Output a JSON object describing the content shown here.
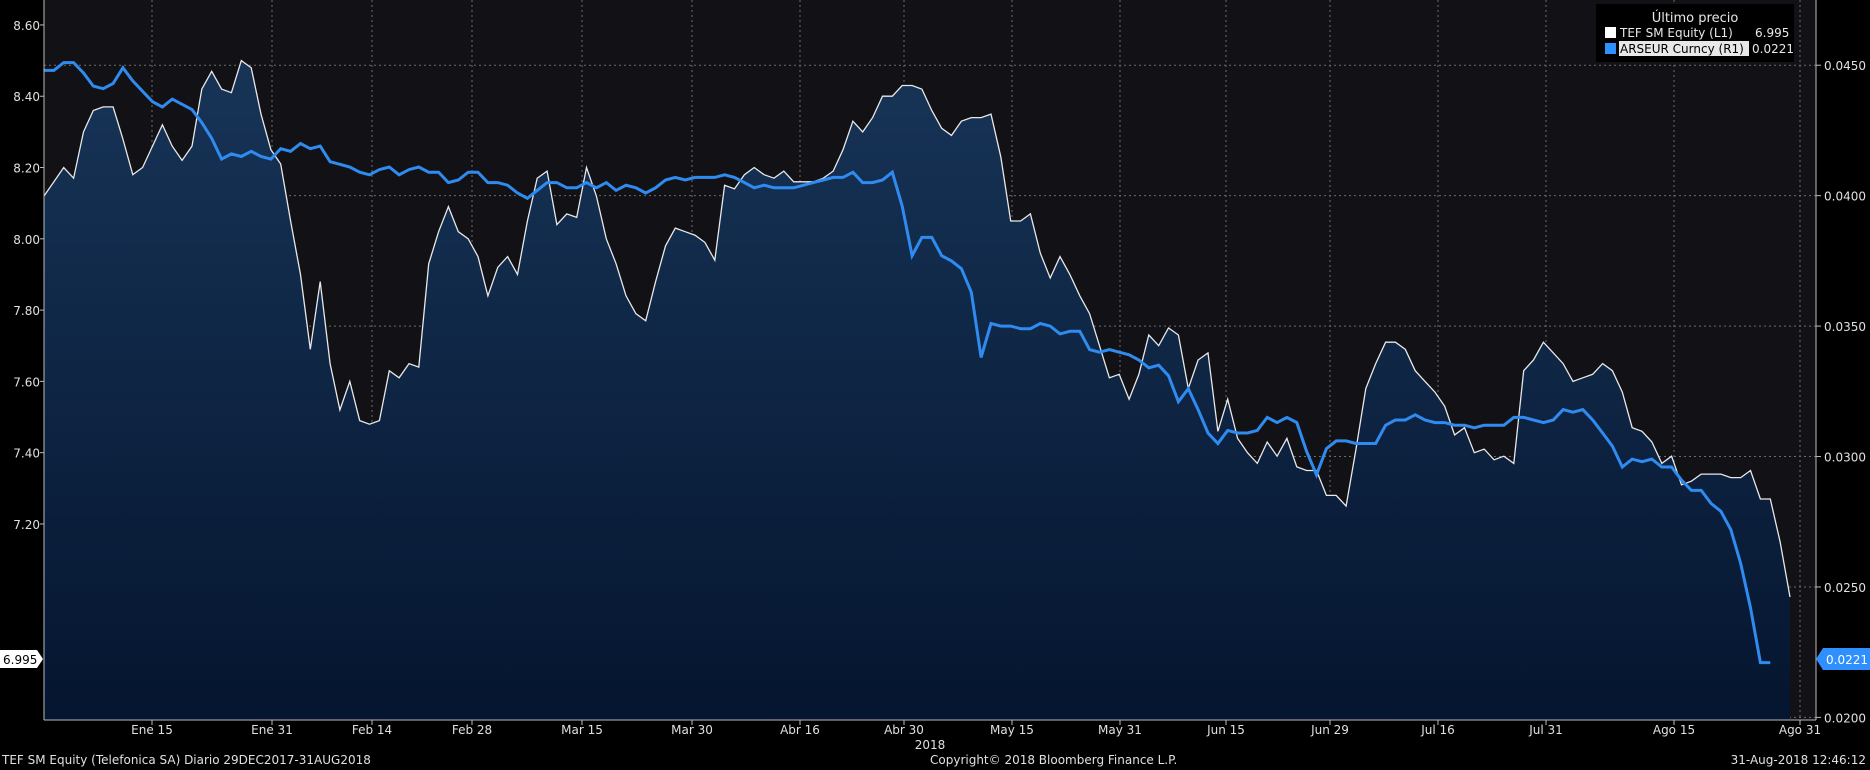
{
  "footer": {
    "left": "TEF SM Equity (Telefonica SA)  Diario 29DEC2017-31AUG2018",
    "center": "Copyright© 2018 Bloomberg Finance L.P.",
    "right": "31-Aug-2018 12:46:12"
  },
  "chart_data": {
    "type": "line",
    "year_label": "2018",
    "x_ticks": [
      "Ene 15",
      "Ene 31",
      "Feb 14",
      "Feb 28",
      "Mar 15",
      "Mar 30",
      "Abr 16",
      "Abr 30",
      "May 15",
      "May 31",
      "Jun 15",
      "Jun 29",
      "Jul 16",
      "Jul 31",
      "Ago 15",
      "Ago 31"
    ],
    "left_axis": {
      "ticks": [
        "7.20",
        "7.40",
        "7.60",
        "7.80",
        "8.00",
        "8.20",
        "8.40",
        "8.60"
      ],
      "range": [
        6.65,
        8.67
      ]
    },
    "right_axis": {
      "ticks": [
        "0.0200",
        "0.0250",
        "0.0300",
        "0.0350",
        "0.0400",
        "0.0450"
      ],
      "range": [
        0.0199,
        0.0475
      ]
    },
    "legend": {
      "title": "Último precio",
      "position": "top-right",
      "entries": [
        {
          "name": "TEF SM Equity  (L1)",
          "value": "6.995",
          "color": "#ffffff"
        },
        {
          "name": "ARSEUR Curncy  (R1)",
          "value": "0.0221",
          "color": "#2e8fff"
        }
      ]
    },
    "last_value_tags": {
      "left": "6.995",
      "right": "0.0221"
    },
    "colors": {
      "background": "#121216",
      "area_top": "#173457",
      "area_bottom": "#05152f",
      "tef_line": "#e8e8e8",
      "ars_line": "#2f8bf0",
      "grid": "#6c6c6c"
    },
    "series": [
      {
        "name": "TEF SM Equity (L1)",
        "axis": "left",
        "values": [
          8.12,
          8.16,
          8.2,
          8.17,
          8.3,
          8.36,
          8.37,
          8.37,
          8.28,
          8.18,
          8.2,
          8.26,
          8.32,
          8.26,
          8.22,
          8.26,
          8.42,
          8.47,
          8.42,
          8.41,
          8.5,
          8.48,
          8.35,
          8.25,
          8.21,
          8.05,
          7.9,
          7.69,
          7.88,
          7.65,
          7.52,
          7.6,
          7.49,
          7.48,
          7.49,
          7.63,
          7.61,
          7.65,
          7.64,
          7.93,
          8.02,
          8.09,
          8.02,
          8.0,
          7.95,
          7.84,
          7.92,
          7.95,
          7.9,
          8.05,
          8.17,
          8.19,
          8.04,
          8.07,
          8.06,
          8.2,
          8.12,
          8.0,
          7.93,
          7.84,
          7.79,
          7.77,
          7.88,
          7.98,
          8.03,
          8.02,
          8.01,
          7.99,
          7.94,
          8.15,
          8.14,
          8.18,
          8.2,
          8.18,
          8.17,
          8.19,
          8.16,
          8.16,
          8.16,
          8.17,
          8.19,
          8.25,
          8.33,
          8.3,
          8.34,
          8.4,
          8.4,
          8.43,
          8.43,
          8.42,
          8.36,
          8.31,
          8.29,
          8.33,
          8.34,
          8.34,
          8.35,
          8.23,
          8.05,
          8.05,
          8.07,
          7.96,
          7.89,
          7.95,
          7.9,
          7.84,
          7.79,
          7.7,
          7.61,
          7.62,
          7.55,
          7.62,
          7.73,
          7.7,
          7.75,
          7.73,
          7.58,
          7.66,
          7.68,
          7.46,
          7.55,
          7.44,
          7.4,
          7.37,
          7.43,
          7.39,
          7.44,
          7.36,
          7.35,
          7.35,
          7.28,
          7.28,
          7.25,
          7.41,
          7.58,
          7.65,
          7.71,
          7.71,
          7.69,
          7.63,
          7.6,
          7.57,
          7.53,
          7.45,
          7.47,
          7.4,
          7.41,
          7.38,
          7.39,
          7.37,
          7.63,
          7.66,
          7.71,
          7.68,
          7.65,
          7.6,
          7.61,
          7.62,
          7.65,
          7.63,
          7.57,
          7.47,
          7.46,
          7.43,
          7.37,
          7.39,
          7.31,
          7.32,
          7.34,
          7.34,
          7.34,
          7.33,
          7.33,
          7.35,
          7.27,
          7.27,
          7.15,
          6.995
        ]
      },
      {
        "name": "ARSEUR Curncy (R1)",
        "axis": "right",
        "values": [
          0.0448,
          0.0448,
          0.0451,
          0.0451,
          0.0447,
          0.0442,
          0.0441,
          0.0443,
          0.0449,
          0.0444,
          0.044,
          0.0436,
          0.0434,
          0.0437,
          0.0435,
          0.0433,
          0.0428,
          0.0422,
          0.0414,
          0.0416,
          0.0415,
          0.0417,
          0.0415,
          0.0414,
          0.0418,
          0.0417,
          0.042,
          0.0418,
          0.0419,
          0.0413,
          0.0412,
          0.0411,
          0.0409,
          0.0408,
          0.041,
          0.0411,
          0.0408,
          0.041,
          0.0411,
          0.0409,
          0.0409,
          0.0405,
          0.0406,
          0.0409,
          0.0409,
          0.0405,
          0.0405,
          0.0404,
          0.0401,
          0.0399,
          0.0402,
          0.0405,
          0.0405,
          0.0403,
          0.0403,
          0.0405,
          0.0403,
          0.0405,
          0.0402,
          0.0404,
          0.0403,
          0.0401,
          0.0403,
          0.0406,
          0.0407,
          0.0406,
          0.0407,
          0.0407,
          0.0407,
          0.0408,
          0.0407,
          0.0405,
          0.0403,
          0.0404,
          0.0403,
          0.0403,
          0.0403,
          0.0404,
          0.0405,
          0.0406,
          0.0407,
          0.0407,
          0.0409,
          0.0405,
          0.0405,
          0.0406,
          0.0409,
          0.0396,
          0.0377,
          0.0384,
          0.0384,
          0.0377,
          0.0375,
          0.0372,
          0.0363,
          0.0338,
          0.0351,
          0.035,
          0.035,
          0.0349,
          0.0349,
          0.0351,
          0.035,
          0.0347,
          0.0348,
          0.0348,
          0.0341,
          0.034,
          0.0341,
          0.034,
          0.0339,
          0.0337,
          0.0334,
          0.0335,
          0.0331,
          0.0321,
          0.0326,
          0.0318,
          0.0309,
          0.0305,
          0.031,
          0.0309,
          0.0309,
          0.031,
          0.0315,
          0.0313,
          0.0315,
          0.0313,
          0.0302,
          0.0293,
          0.0303,
          0.0306,
          0.0306,
          0.0305,
          0.0305,
          0.0305,
          0.0312,
          0.0314,
          0.0314,
          0.0316,
          0.0314,
          0.0313,
          0.0313,
          0.0312,
          0.0312,
          0.0311,
          0.0312,
          0.0312,
          0.0312,
          0.0315,
          0.0315,
          0.0314,
          0.0313,
          0.0314,
          0.0318,
          0.0317,
          0.0318,
          0.0314,
          0.0309,
          0.0304,
          0.0296,
          0.0299,
          0.0298,
          0.0299,
          0.0296,
          0.0296,
          0.0291,
          0.0287,
          0.0287,
          0.0282,
          0.0279,
          0.0272,
          0.0259,
          0.0242,
          0.0221,
          0.0221
        ]
      }
    ]
  }
}
